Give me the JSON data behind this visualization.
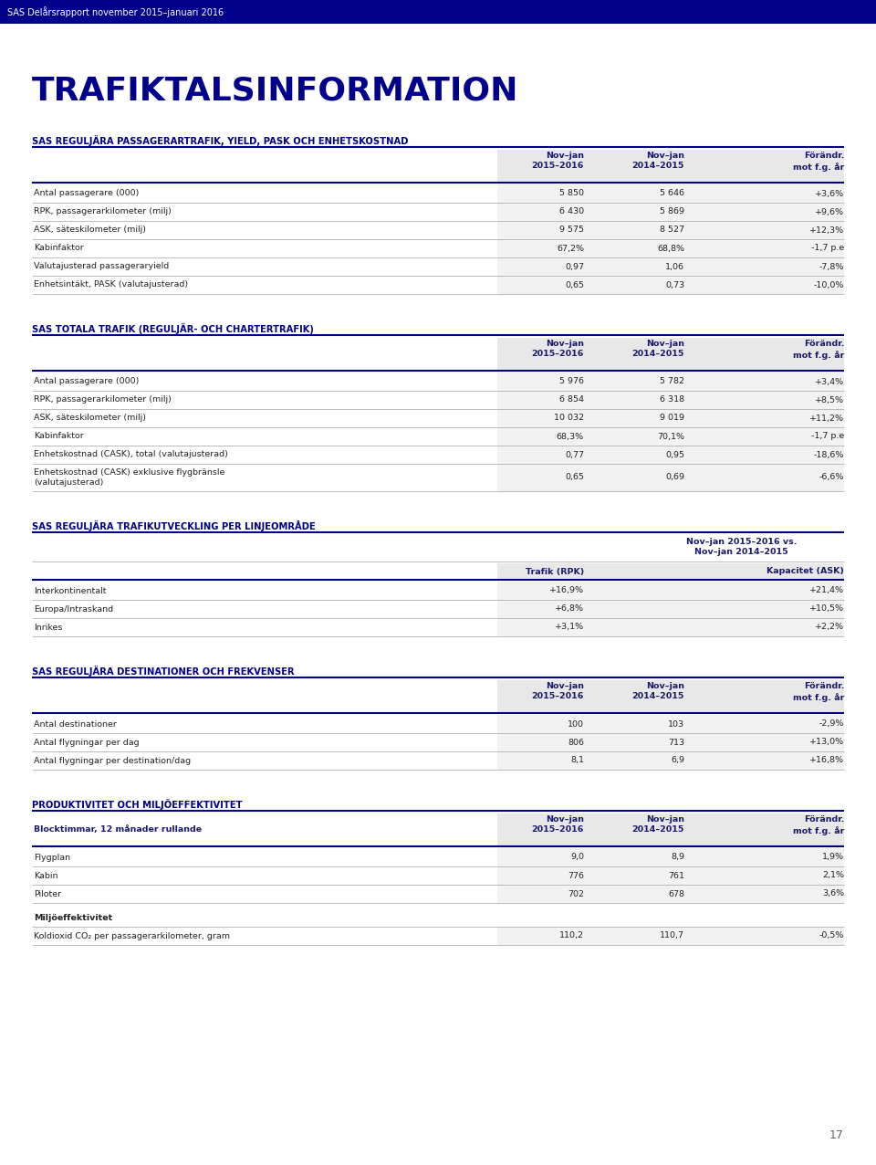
{
  "header_text": "SAS Delårsrapport november 2015–januari 2016",
  "header_bg": "#00008B",
  "header_text_color": "#FFFFFF",
  "title": "TRAFIKTALSINFORMATION",
  "title_color": "#00008B",
  "page_bg": "#FFFFFF",
  "section_title_color": "#00008B",
  "col_header_bg": "#E8E8E8",
  "col_header_color": "#1a1a6e",
  "data_col_bg": "#F2F2F2",
  "text_color": "#222222",
  "line_color_thick": "#00008B",
  "line_color_thin": "#BBBBBB",
  "page_number": "17",
  "table1_title": "SAS REGULJÄRA PASSAGERARTRAFIK, YIELD, PASK OCH ENHETSKOSTNAD",
  "table1_col1": "Nov–jan\n2015–2016",
  "table1_col2": "Nov–jan\n2014–2015",
  "table1_col3": "Förändr.\nmot f.g. år",
  "table1_rows": [
    [
      "Antal passagerare (000)",
      "5 850",
      "5 646",
      "+3,6%"
    ],
    [
      "RPK, passagerarkilometer (milj)",
      "6 430",
      "5 869",
      "+9,6%"
    ],
    [
      "ASK, säteskilometer (milj)",
      "9 575",
      "8 527",
      "+12,3%"
    ],
    [
      "Kabinfaktor",
      "67,2%",
      "68,8%",
      "-1,7 p.e"
    ],
    [
      "Valutajusterad passageraryield",
      "0,97",
      "1,06",
      "-7,8%"
    ],
    [
      "Enhetsintäkt, PASK (valutajusterad)",
      "0,65",
      "0,73",
      "-10,0%"
    ]
  ],
  "table2_title": "SAS TOTALA TRAFIK (REGULJÄR- OCH CHARTERTRAFIK)",
  "table2_col1": "Nov–jan\n2015–2016",
  "table2_col2": "Nov–jan\n2014–2015",
  "table2_col3": "Förändr.\nmot f.g. år",
  "table2_rows": [
    [
      "Antal passagerare (000)",
      "5 976",
      "5 782",
      "+3,4%"
    ],
    [
      "RPK, passagerarkilometer (milj)",
      "6 854",
      "6 318",
      "+8,5%"
    ],
    [
      "ASK, säteskilometer (milj)",
      "10 032",
      "9 019",
      "+11,2%"
    ],
    [
      "Kabinfaktor",
      "68,3%",
      "70,1%",
      "-1,7 p.e"
    ],
    [
      "Enhetskostnad (CASK), total (valutajusterad)",
      "0,77",
      "0,95",
      "-18,6%"
    ],
    [
      "Enhetskostnad (CASK) exklusive flygbränsle\n(valutajusterad)",
      "0,65",
      "0,69",
      "-6,6%"
    ]
  ],
  "table3_title": "SAS REGULJÄRA TRAFIKUTVECKLING PER LINJEOMRÅDE",
  "table3_span_header": "Nov–jan 2015–2016 vs.\nNov–jan 2014–2015",
  "table3_col1": "Trafik (RPK)",
  "table3_col2": "Kapacitet (ASK)",
  "table3_rows": [
    [
      "Interkontinentalt",
      "+16,9%",
      "+21,4%"
    ],
    [
      "Europa/Intraskand",
      "+6,8%",
      "+10,5%"
    ],
    [
      "Inrikes",
      "+3,1%",
      "+2,2%"
    ]
  ],
  "table4_title": "SAS REGULJÄRA DESTINATIONER OCH FREKVENSER",
  "table4_col1": "Nov–jan\n2015–2016",
  "table4_col2": "Nov–jan\n2014–2015",
  "table4_col3": "Förändr.\nmot f.g. år",
  "table4_rows": [
    [
      "Antal destinationer",
      "100",
      "103",
      "-2,9%"
    ],
    [
      "Antal flygningar per dag",
      "806",
      "713",
      "+13,0%"
    ],
    [
      "Antal flygningar per destination/dag",
      "8,1",
      "6,9",
      "+16,8%"
    ]
  ],
  "table5_title": "PRODUKTIVITET OCH MILJÖEFFEKTIVITET",
  "table5_bold_row": "Blocktimmar, 12 månader rullande",
  "table5_col1": "Nov–jan\n2015–2016",
  "table5_col2": "Nov–jan\n2014–2015",
  "table5_col3": "Förändr.\nmot f.g. år",
  "table5_rows": [
    [
      "Flygplan",
      "9,0",
      "8,9",
      "1,9%"
    ],
    [
      "Kabin",
      "776",
      "761",
      "2,1%"
    ],
    [
      "Piloter",
      "702",
      "678",
      "3,6%"
    ]
  ],
  "table5_section2": "Miljöeffektivitet",
  "table5_rows2": [
    [
      "Koldioxid CO₂ per passagerarkilometer, gram",
      "110,2",
      "110,7",
      "-0,5%"
    ]
  ]
}
